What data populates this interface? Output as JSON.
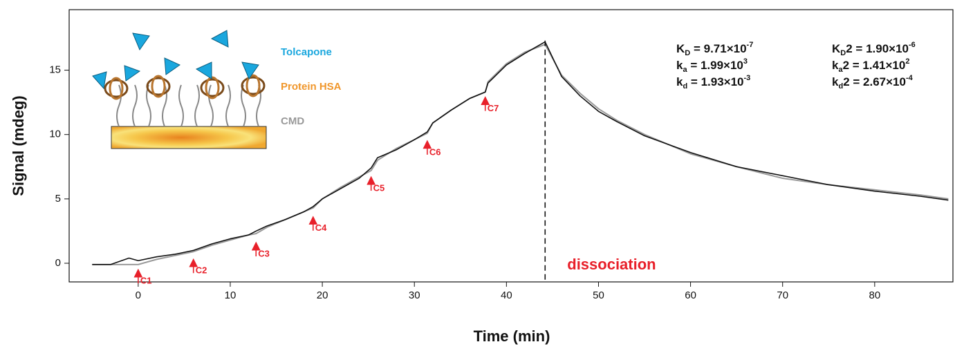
{
  "chart_data": {
    "type": "line",
    "x": [
      -5,
      -3,
      -1,
      0,
      2,
      4,
      6,
      8,
      10,
      12,
      12.8,
      14,
      16,
      18,
      19,
      20,
      22,
      24,
      25.3,
      26,
      28,
      30,
      31.4,
      32,
      34,
      36,
      37.7,
      38,
      40,
      42,
      44.2,
      46,
      48,
      50,
      52,
      55,
      60,
      65,
      70,
      75,
      80,
      85,
      88
    ],
    "series": [
      {
        "color": "#111111",
        "values": [
          -0.1,
          -0.1,
          0.4,
          0.2,
          0.5,
          0.7,
          1.0,
          1.5,
          1.9,
          2.2,
          2.5,
          2.9,
          3.4,
          4.0,
          4.4,
          5.0,
          5.8,
          6.6,
          7.4,
          8.2,
          8.8,
          9.6,
          10.2,
          10.9,
          11.9,
          12.8,
          13.3,
          14.0,
          15.4,
          16.3,
          17.2,
          14.5,
          13.0,
          11.8,
          11.0,
          9.9,
          8.6,
          7.5,
          6.8,
          6.1,
          5.6,
          5.2,
          4.9
        ]
      },
      {
        "color": "#999999",
        "values": [
          -0.1,
          -0.1,
          -0.1,
          -0.1,
          0.3,
          0.6,
          0.9,
          1.4,
          1.8,
          2.2,
          2.3,
          2.8,
          3.4,
          4.0,
          4.3,
          5.0,
          5.9,
          6.7,
          7.2,
          8.0,
          8.9,
          9.6,
          10.1,
          10.9,
          11.9,
          12.8,
          13.3,
          14.1,
          15.5,
          16.4,
          17.0,
          14.6,
          13.2,
          12.0,
          11.1,
          10.0,
          8.5,
          7.5,
          6.6,
          6.1,
          5.7,
          5.3,
          5.0
        ]
      }
    ],
    "xlabel": "Time (min)",
    "ylabel": "Signal (mdeg)",
    "xlim": [
      -7.5,
      88.5
    ],
    "ylim": [
      -1.45,
      19.7
    ],
    "xticks": [
      0,
      10,
      20,
      30,
      40,
      50,
      60,
      70,
      80
    ],
    "yticks": [
      0,
      5,
      10,
      15
    ],
    "injections": [
      {
        "text": "C1",
        "x": 0,
        "y": -0.6
      },
      {
        "text": "C2",
        "x": 6,
        "y": 0.2
      },
      {
        "text": "C3",
        "x": 12.8,
        "y": 1.5
      },
      {
        "text": "C4",
        "x": 19,
        "y": 3.5
      },
      {
        "text": "C5",
        "x": 25.3,
        "y": 6.6
      },
      {
        "text": "C6",
        "x": 31.4,
        "y": 9.4
      },
      {
        "text": "C7",
        "x": 37.7,
        "y": 12.8
      }
    ],
    "injection_color": "#e8202a",
    "dissociation": {
      "x": 44.2,
      "text": "dissociation",
      "color": "#e8202a"
    },
    "kinetics": [
      [
        {
          "symbol": "K",
          "sub": "D",
          "text": " = 9.71×10",
          "exp": "-7"
        },
        {
          "symbol": "k",
          "sub": "a",
          "text": " = 1.99×10",
          "exp": "3"
        },
        {
          "symbol": "k",
          "sub": "d",
          "text": " = 1.93×10",
          "exp": "-3"
        }
      ],
      [
        {
          "symbol": "K",
          "sub": "D",
          "text": "2 = 1.90×10",
          "exp": "-6"
        },
        {
          "symbol": "k",
          "sub": "a",
          "text": "2 = 1.41×10",
          "exp": "2"
        },
        {
          "symbol": "k",
          "sub": "d",
          "text": "2 = 2.67×10",
          "exp": "-4"
        }
      ]
    ],
    "inset_labels": [
      {
        "text": "Tolcapone",
        "color": "#1aa7de"
      },
      {
        "text": "Protein HSA",
        "color": "#f0962a"
      },
      {
        "text": "CMD",
        "color": "#999999"
      }
    ]
  }
}
